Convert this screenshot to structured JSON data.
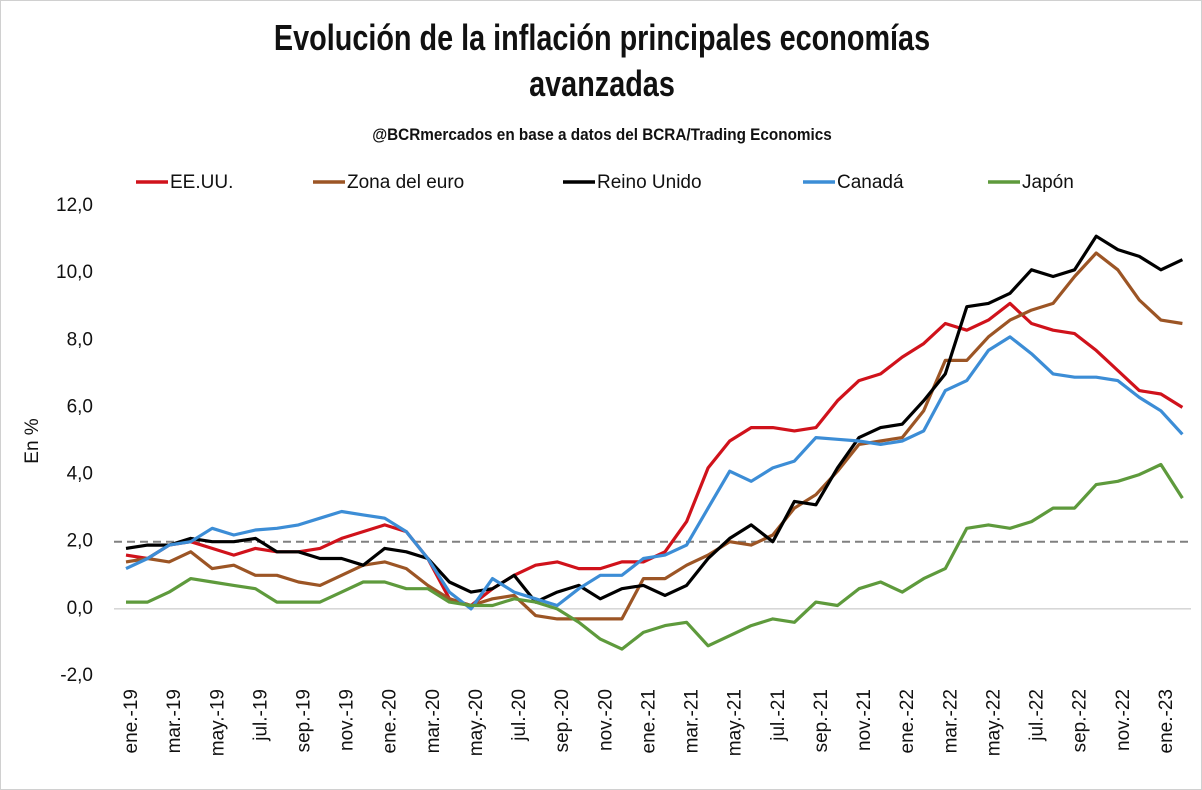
{
  "chart_data": {
    "type": "line",
    "title": "Evolución de la inflación principales economías avanzadas",
    "subtitle": "@BCRmercados en base a datos del BCRA/Trading Economics",
    "ylabel": "En %",
    "categories": [
      "ene.-19",
      null,
      "mar.-19",
      null,
      "may.-19",
      null,
      "jul.-19",
      null,
      "sep.-19",
      null,
      "nov.-19",
      null,
      "ene.-20",
      null,
      "mar.-20",
      null,
      "may.-20",
      null,
      "jul.-20",
      null,
      "sep.-20",
      null,
      "nov.-20",
      null,
      "ene.-21",
      null,
      "mar.-21",
      null,
      "may.-21",
      null,
      "jul.-21",
      null,
      "sep.-21",
      null,
      "nov.-21",
      null,
      "ene.-22",
      null,
      "mar.-22",
      null,
      "may.-22",
      null,
      "jul.-22",
      null,
      "sep.-22",
      null,
      "nov.-22",
      null,
      "ene.-23",
      null
    ],
    "series": [
      {
        "name": "EE.UU.",
        "color": "#d0121b",
        "values": [
          1.6,
          1.5,
          1.9,
          2.0,
          1.8,
          1.6,
          1.8,
          1.7,
          1.7,
          1.8,
          2.1,
          2.3,
          2.5,
          2.3,
          1.5,
          0.3,
          0.1,
          0.6,
          1.0,
          1.3,
          1.4,
          1.2,
          1.2,
          1.4,
          1.4,
          1.7,
          2.6,
          4.2,
          5.0,
          5.4,
          5.4,
          5.3,
          5.4,
          6.2,
          6.8,
          7.0,
          7.5,
          7.9,
          8.5,
          8.3,
          8.6,
          9.1,
          8.5,
          8.3,
          8.2,
          7.7,
          7.1,
          6.5,
          6.4,
          6.0
        ]
      },
      {
        "name": "Zona del euro",
        "color": "#9c5525",
        "values": [
          1.4,
          1.5,
          1.4,
          1.7,
          1.2,
          1.3,
          1.0,
          1.0,
          0.8,
          0.7,
          1.0,
          1.3,
          1.4,
          1.2,
          0.7,
          0.3,
          0.1,
          0.3,
          0.4,
          -0.2,
          -0.3,
          -0.3,
          -0.3,
          -0.3,
          0.9,
          0.9,
          1.3,
          1.6,
          2.0,
          1.9,
          2.2,
          3.0,
          3.4,
          4.1,
          4.9,
          5.0,
          5.1,
          5.9,
          7.4,
          7.4,
          8.1,
          8.6,
          8.9,
          9.1,
          9.9,
          10.6,
          10.1,
          9.2,
          8.6,
          8.5
        ]
      },
      {
        "name": "Reino Unido",
        "color": "#000000",
        "values": [
          1.8,
          1.9,
          1.9,
          2.1,
          2.0,
          2.0,
          2.1,
          1.7,
          1.7,
          1.5,
          1.5,
          1.3,
          1.8,
          1.7,
          1.5,
          0.8,
          0.5,
          0.6,
          1.0,
          0.2,
          0.5,
          0.7,
          0.3,
          0.6,
          0.7,
          0.4,
          0.7,
          1.5,
          2.1,
          2.5,
          2.0,
          3.2,
          3.1,
          4.2,
          5.1,
          5.4,
          5.5,
          6.2,
          7.0,
          9.0,
          9.1,
          9.4,
          10.1,
          9.9,
          10.1,
          11.1,
          10.7,
          10.5,
          10.1,
          10.4
        ]
      },
      {
        "name": "Canadá",
        "color": "#3c8dd6",
        "values": [
          1.2,
          1.5,
          1.9,
          2.0,
          2.4,
          2.2,
          2.35,
          2.4,
          2.5,
          2.7,
          2.9,
          2.8,
          2.7,
          2.3,
          1.5,
          0.5,
          0.0,
          0.9,
          0.5,
          0.3,
          0.1,
          0.6,
          1.0,
          1.0,
          1.5,
          1.6,
          1.9,
          3.0,
          4.1,
          3.8,
          4.2,
          4.4,
          5.1,
          5.05,
          5.0,
          4.9,
          5.0,
          5.3,
          6.5,
          6.8,
          7.7,
          8.1,
          7.6,
          7.0,
          6.9,
          6.9,
          6.8,
          6.3,
          5.9,
          5.2
        ]
      },
      {
        "name": "Japón",
        "color": "#5e9a3c",
        "values": [
          0.2,
          0.2,
          0.5,
          0.9,
          0.8,
          0.7,
          0.6,
          0.2,
          0.2,
          0.2,
          0.5,
          0.8,
          0.8,
          0.6,
          0.6,
          0.2,
          0.1,
          0.1,
          0.3,
          0.2,
          0.0,
          -0.4,
          -0.9,
          -1.2,
          -0.7,
          -0.5,
          -0.4,
          -1.1,
          -0.8,
          -0.5,
          -0.3,
          -0.4,
          0.2,
          0.1,
          0.6,
          0.8,
          0.5,
          0.9,
          1.2,
          2.4,
          2.5,
          2.4,
          2.6,
          3.0,
          3.0,
          3.7,
          3.8,
          4.0,
          4.3,
          3.3
        ]
      }
    ],
    "reference_line": 2,
    "ylim": [
      -2,
      12
    ],
    "yticks": [
      {
        "value": -2,
        "label": "-2,0"
      },
      {
        "value": 0,
        "label": "0,0"
      },
      {
        "value": 2,
        "label": "2,0"
      },
      {
        "value": 4,
        "label": "4,0"
      },
      {
        "value": 6,
        "label": "6,0"
      },
      {
        "value": 8,
        "label": "8,0"
      },
      {
        "value": 10,
        "label": "10,0"
      },
      {
        "value": 12,
        "label": "12,0"
      }
    ],
    "legend": "top"
  }
}
